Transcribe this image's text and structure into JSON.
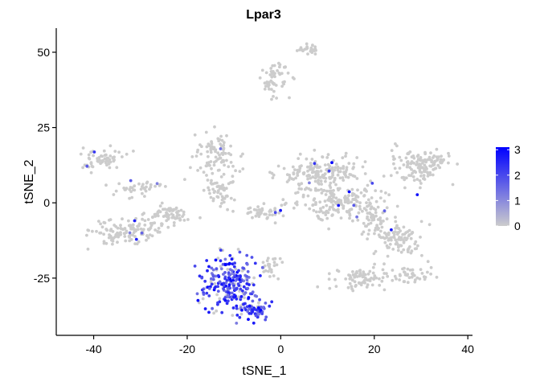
{
  "chart_data": {
    "type": "scatter",
    "title": "Lpar3",
    "xlabel": "tSNE_1",
    "ylabel": "tSNE_2",
    "xlim": [
      -48,
      41
    ],
    "ylim": [
      -44,
      58
    ],
    "xticks": [
      -40,
      -20,
      0,
      20,
      40
    ],
    "yticks": [
      -25,
      0,
      25,
      50
    ],
    "xtick_labels": [
      "-40",
      "-20",
      "0",
      "20",
      "40"
    ],
    "ytick_labels": [
      "-25",
      "0",
      "25",
      "50"
    ],
    "grid": false,
    "legend": {
      "placement": "right",
      "type": "colorbar",
      "title": "",
      "range": [
        0,
        3.1
      ],
      "ticks": [
        0,
        1,
        2,
        3
      ],
      "tick_labels": [
        "0",
        "1",
        "2",
        "3"
      ]
    },
    "colors": {
      "low": "#cccccc",
      "high": "#0000ff",
      "axis": "#000000"
    },
    "clusters": [
      {
        "name": "top_blob",
        "cx": 6,
        "cy": 51,
        "rx": 2.2,
        "ry": 1.6,
        "n": 25,
        "expr": 0
      },
      {
        "name": "upper_blob",
        "cx": -1.5,
        "cy": 41,
        "rx": 3,
        "ry": 5,
        "n": 55,
        "expr": 0
      },
      {
        "name": "left_arm_upper",
        "cx": -38,
        "cy": 14,
        "rx": 5,
        "ry": 3,
        "n": 60,
        "expr": 0.03
      },
      {
        "name": "left_arm_diag",
        "cx": -31,
        "cy": 5,
        "rx": 5,
        "ry": 2.5,
        "n": 40,
        "expr": 0.02
      },
      {
        "name": "left_lower",
        "cx": -33,
        "cy": -9,
        "rx": 7,
        "ry": 4,
        "n": 130,
        "expr": 0.02
      },
      {
        "name": "left_right_tail",
        "cx": -24,
        "cy": -4,
        "rx": 4,
        "ry": 3,
        "n": 60,
        "expr": 0
      },
      {
        "name": "center_top",
        "cx": -14,
        "cy": 16,
        "rx": 4,
        "ry": 6,
        "n": 80,
        "expr": 0.02
      },
      {
        "name": "center_mid",
        "cx": -13,
        "cy": 4,
        "rx": 3,
        "ry": 6,
        "n": 60,
        "expr": 0.06
      },
      {
        "name": "bottom_left_expr",
        "cx": -11,
        "cy": -27,
        "rx": 5.5,
        "ry": 9,
        "n": 230,
        "expr": 0.85
      },
      {
        "name": "bottom_left_tip",
        "cx": -6,
        "cy": -36,
        "rx": 3,
        "ry": 3,
        "n": 60,
        "expr": 0.9
      },
      {
        "name": "bridge",
        "cx": -4,
        "cy": -3,
        "rx": 3,
        "ry": 2,
        "n": 40,
        "expr": 0.05
      },
      {
        "name": "center_right_upper",
        "cx": 9,
        "cy": 10,
        "rx": 8,
        "ry": 5,
        "n": 180,
        "expr": 0.03
      },
      {
        "name": "center_right_lower",
        "cx": 12,
        "cy": 0,
        "rx": 9,
        "ry": 5,
        "n": 180,
        "expr": 0.02
      },
      {
        "name": "center_small",
        "cx": -2,
        "cy": -21,
        "rx": 2.5,
        "ry": 3,
        "n": 25,
        "expr": 0
      },
      {
        "name": "mid_lower_cluster",
        "cx": 17,
        "cy": -25,
        "rx": 5,
        "ry": 3.5,
        "n": 80,
        "expr": 0.01
      },
      {
        "name": "right_upper",
        "cx": 29,
        "cy": 12,
        "rx": 5,
        "ry": 5,
        "n": 110,
        "expr": 0.02
      },
      {
        "name": "right_far",
        "cx": 34,
        "cy": 14,
        "rx": 2.5,
        "ry": 2.5,
        "n": 30,
        "expr": 0.02
      },
      {
        "name": "right_middle",
        "cx": 25,
        "cy": -12,
        "rx": 5,
        "ry": 5,
        "n": 100,
        "expr": 0.02
      },
      {
        "name": "right_lower",
        "cx": 28,
        "cy": -24,
        "rx": 4,
        "ry": 3,
        "n": 45,
        "expr": 0.02
      },
      {
        "name": "right_mid_left",
        "cx": 20,
        "cy": -6,
        "rx": 3,
        "ry": 3,
        "n": 40,
        "expr": 0.03
      }
    ]
  }
}
